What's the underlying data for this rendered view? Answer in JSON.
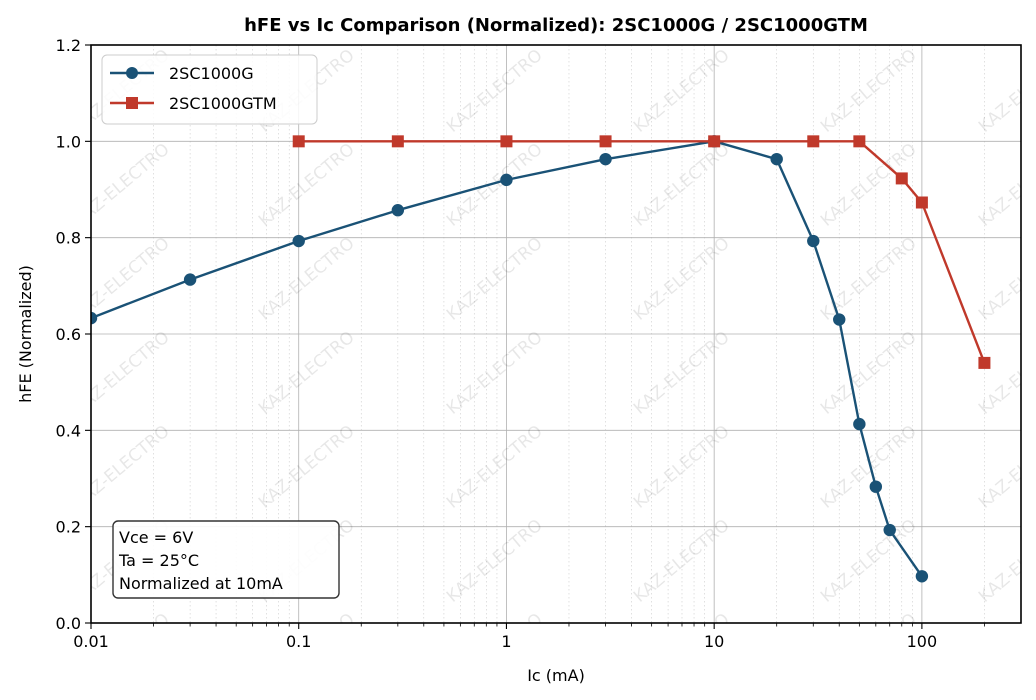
{
  "chart_data": {
    "type": "line",
    "title": "hFE vs Ic Comparison (Normalized): 2SC1000G / 2SC1000GTM",
    "xlabel": "Ic (mA)",
    "ylabel": "hFE (Normalized)",
    "xscale": "log",
    "xlim": [
      0.01,
      300
    ],
    "ylim": [
      0.0,
      1.2
    ],
    "xticks": [
      0.01,
      0.1,
      1,
      10,
      100
    ],
    "xtick_labels": [
      "0.01",
      "0.1",
      "1",
      "10",
      "100"
    ],
    "yticks": [
      0.0,
      0.2,
      0.4,
      0.6,
      0.8,
      1.0,
      1.2
    ],
    "ytick_labels": [
      "0.0",
      "0.2",
      "0.4",
      "0.6",
      "0.8",
      "1.0",
      "1.2"
    ],
    "grid": true,
    "legend_position": "top-left",
    "series": [
      {
        "name": "2SC1000G",
        "color": "#1a5276",
        "marker": "circle",
        "x": [
          0.01,
          0.03,
          0.1,
          0.3,
          1,
          3,
          10,
          20,
          30,
          40,
          50,
          60,
          70,
          100
        ],
        "y": [
          0.633,
          0.713,
          0.793,
          0.857,
          0.92,
          0.963,
          1.0,
          0.963,
          0.793,
          0.63,
          0.413,
          0.283,
          0.193,
          0.097
        ]
      },
      {
        "name": "2SC1000GTM",
        "color": "#c0392b",
        "marker": "square",
        "x": [
          0.1,
          0.3,
          1,
          3,
          10,
          30,
          50,
          80,
          100,
          200
        ],
        "y": [
          1.0,
          1.0,
          1.0,
          1.0,
          1.0,
          1.0,
          1.0,
          0.923,
          0.873,
          0.54
        ]
      }
    ],
    "annotation": {
      "lines": [
        "Vce = 6V",
        "Ta = 25°C",
        "Normalized at 10mA"
      ],
      "position": "bottom-left"
    },
    "watermark": "KAZ-ELECTRO"
  }
}
